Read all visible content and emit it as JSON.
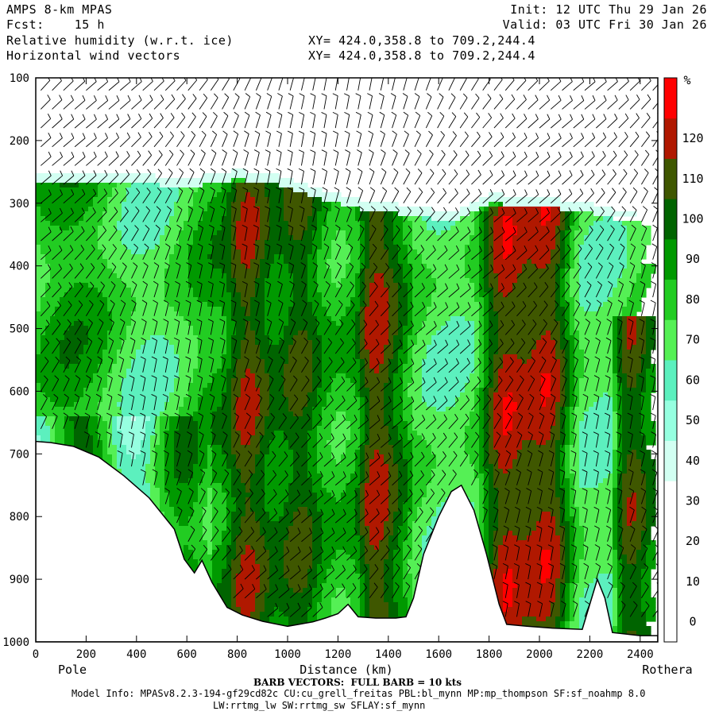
{
  "header": {
    "model": "AMPS 8-km MPAS",
    "fcst": "Fcst:    15 h",
    "field1": "Relative humidity (w.r.t. ice)",
    "field2": "Horizontal wind vectors",
    "init": "Init: 12 UTC Thu 29 Jan 26",
    "valid": "Valid: 03 UTC Fri 30 Jan 26",
    "xy1": "XY= 424.0,358.8 to 709.2,244.4",
    "xy2": "XY= 424.0,358.8 to 709.2,244.4"
  },
  "footer": {
    "barb": "BARB VECTORS:  FULL BARB = 10 kts",
    "model_info": "Model Info: MPASv8.2.3-194-gf29cd82c CU:cu_grell_freitas PBL:bl_mynn MP:mp_thompson SF:sf_noahmp 8.0",
    "schemes": "LW:rrtmg_lw SW:rrtmg_sw SFLAY:sf_mynn"
  },
  "chart_data": {
    "type": "heatmap",
    "title": "Relative humidity (w.r.t. ice)",
    "xlabel": "Distance (km)",
    "ylabel": "",
    "xlim": [
      0,
      2470
    ],
    "ylim": [
      1000,
      100
    ],
    "x_ticks": [
      0,
      200,
      400,
      600,
      800,
      1000,
      1200,
      1400,
      1600,
      1800,
      2000,
      2200,
      2400
    ],
    "y_ticks": [
      100,
      200,
      300,
      400,
      500,
      600,
      700,
      800,
      900,
      1000
    ],
    "x_end_labels": {
      "left": "Pole",
      "right": "Rothera"
    },
    "colorbar": {
      "unit": "%",
      "levels": [
        0,
        10,
        20,
        30,
        40,
        50,
        60,
        70,
        80,
        90,
        100,
        110,
        120
      ],
      "colors": [
        "#ffffff",
        "#ffffff",
        "#ffffff",
        "#ffffff",
        "#d2fff2",
        "#96ffe0",
        "#5cf0be",
        "#55f055",
        "#22cc22",
        "#009900",
        "#006400",
        "#3f5700",
        "#b01800",
        "#ff0000"
      ]
    },
    "terrain_pressure_hPa": [
      [
        0,
        680
      ],
      [
        60,
        682
      ],
      [
        150,
        688
      ],
      [
        250,
        705
      ],
      [
        350,
        735
      ],
      [
        450,
        770
      ],
      [
        550,
        820
      ],
      [
        590,
        868
      ],
      [
        630,
        890
      ],
      [
        660,
        870
      ],
      [
        700,
        905
      ],
      [
        760,
        945
      ],
      [
        820,
        957
      ],
      [
        900,
        967
      ],
      [
        1000,
        975
      ],
      [
        1100,
        968
      ],
      [
        1150,
        962
      ],
      [
        1200,
        955
      ],
      [
        1240,
        940
      ],
      [
        1280,
        960
      ],
      [
        1350,
        962
      ],
      [
        1430,
        962
      ],
      [
        1470,
        960
      ],
      [
        1500,
        930
      ],
      [
        1540,
        860
      ],
      [
        1600,
        800
      ],
      [
        1650,
        760
      ],
      [
        1690,
        750
      ],
      [
        1740,
        790
      ],
      [
        1790,
        860
      ],
      [
        1840,
        940
      ],
      [
        1870,
        972
      ],
      [
        1950,
        975
      ],
      [
        2050,
        978
      ],
      [
        2170,
        980
      ],
      [
        2200,
        940
      ],
      [
        2230,
        900
      ],
      [
        2260,
        930
      ],
      [
        2290,
        985
      ],
      [
        2400,
        990
      ],
      [
        2470,
        990
      ]
    ],
    "top_of_moist_layer_hPa": [
      [
        0,
        270
      ],
      [
        300,
        265
      ],
      [
        600,
        275
      ],
      [
        700,
        268
      ],
      [
        800,
        262
      ],
      [
        950,
        270
      ],
      [
        1100,
        290
      ],
      [
        1300,
        310
      ],
      [
        1500,
        320
      ],
      [
        1650,
        330
      ],
      [
        1800,
        300
      ],
      [
        2000,
        305
      ],
      [
        2200,
        315
      ],
      [
        2350,
        330
      ],
      [
        2470,
        335
      ]
    ],
    "moisture_towers": [
      {
        "x_range_km": [
          740,
          1210
        ],
        "top_hPa": 270,
        "core_rh": 120
      },
      {
        "x_range_km": [
          1270,
          1500
        ],
        "top_hPa": 300,
        "core_rh": 110
      },
      {
        "x_range_km": [
          1740,
          2160
        ],
        "top_hPa": 305,
        "core_rh": 120
      },
      {
        "x_range_km": [
          2280,
          2470
        ],
        "top_hPa": 480,
        "core_rh": 115
      }
    ],
    "wind_barbs": "Horizontal wind vectors plotted on the pressure-distance grid"
  }
}
